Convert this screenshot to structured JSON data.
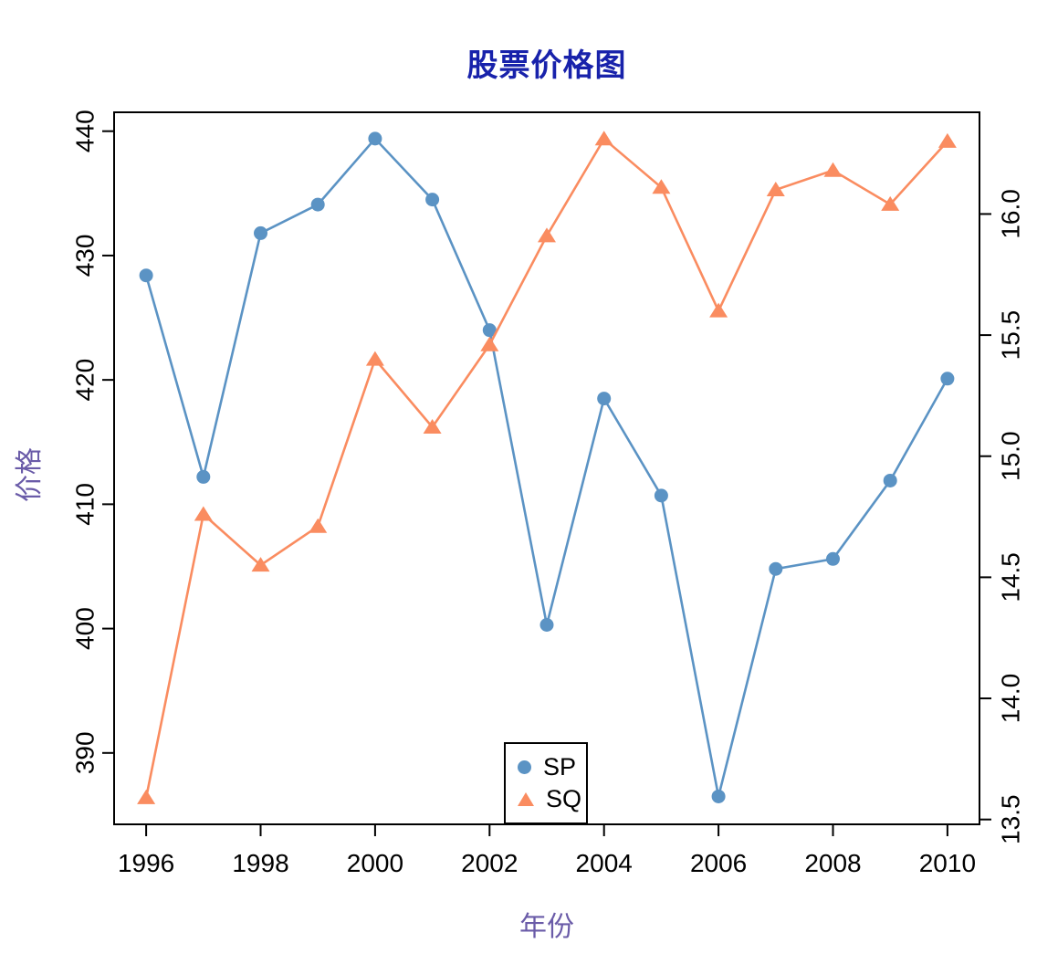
{
  "title": "股票价格图",
  "x_axis": {
    "label": "年份",
    "tick_labels": [
      "1996",
      "1998",
      "2000",
      "2002",
      "2004",
      "2006",
      "2008",
      "2010"
    ]
  },
  "y_axis_left": {
    "label": "价格",
    "tick_labels": [
      "390",
      "400",
      "410",
      "420",
      "430",
      "440"
    ]
  },
  "y_axis_right": {
    "tick_labels": [
      "13.5",
      "14.0",
      "14.5",
      "15.0",
      "15.5",
      "16.0"
    ]
  },
  "legend": {
    "items": [
      {
        "label": "SP",
        "marker": "circle",
        "color": "#5B93C4"
      },
      {
        "label": "SQ",
        "marker": "triangle",
        "color": "#FA8C60"
      }
    ]
  },
  "colors": {
    "title": "#1822AB",
    "axis_title": "#6A5BA8",
    "axis_line": "#000000",
    "sp": "#5B93C4",
    "sq": "#FA8C60",
    "background": "#ffffff"
  },
  "chart_data": {
    "type": "line",
    "title": "股票价格图",
    "xlabel": "年份",
    "ylabel_left": "价格",
    "x": [
      1996,
      1997,
      1998,
      1999,
      2000,
      2001,
      2002,
      2003,
      2004,
      2005,
      2006,
      2007,
      2008,
      2009,
      2010
    ],
    "series": [
      {
        "name": "SP",
        "axis": "left",
        "marker": "circle",
        "color": "#5B93C4",
        "values": [
          428.4,
          412.2,
          431.8,
          434.1,
          439.4,
          434.5,
          424.0,
          400.3,
          418.5,
          410.7,
          386.5,
          404.8,
          405.6,
          411.9,
          420.1
        ]
      },
      {
        "name": "SQ",
        "axis": "right",
        "marker": "triangle",
        "color": "#FA8C60",
        "values": [
          13.59,
          14.76,
          14.55,
          14.71,
          15.4,
          15.12,
          15.46,
          15.91,
          16.31,
          16.11,
          15.6,
          16.1,
          16.18,
          16.04,
          16.3
        ]
      }
    ],
    "x_ticks": [
      1996,
      1998,
      2000,
      2002,
      2004,
      2006,
      2008,
      2010
    ],
    "y_ticks_left": [
      390,
      400,
      410,
      420,
      430,
      440
    ],
    "y_ticks_right": [
      13.5,
      14.0,
      14.5,
      15.0,
      15.5,
      16.0
    ],
    "xlim": [
      1995.44,
      2010.56
    ],
    "ylim_left": [
      384.26,
      441.52
    ],
    "ylim_right": [
      13.48,
      16.42
    ],
    "grid": false,
    "legend_position": "bottom-center-inside"
  }
}
